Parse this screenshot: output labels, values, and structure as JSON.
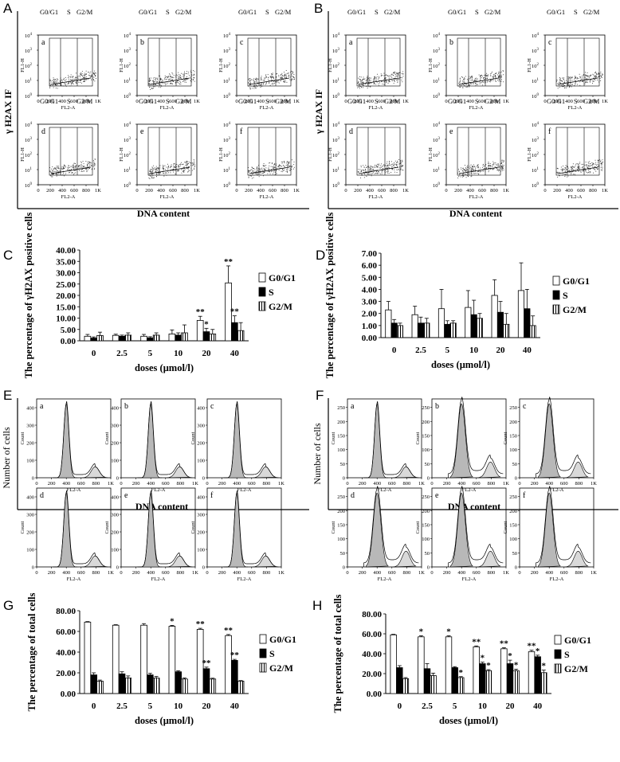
{
  "panel_letters": [
    "A",
    "B",
    "C",
    "D",
    "E",
    "F",
    "G",
    "H"
  ],
  "flow": {
    "gate_labels": [
      "G0/G1",
      "S",
      "G2/M"
    ],
    "x_ticks": [
      "0",
      "200",
      "400",
      "600",
      "800",
      "1K"
    ],
    "y_ticks": [
      "10^0",
      "10^1",
      "10^2",
      "10^3",
      "10^4"
    ],
    "x_axis": "FL2-A",
    "y_axis_small": "FL1-H",
    "y_axis_title": "γ H2AX  IF",
    "x_axis_title": "DNA content",
    "sub_labels": [
      "a",
      "b",
      "c",
      "d",
      "e",
      "f"
    ]
  },
  "hist": {
    "x_ticks": [
      "0",
      "200",
      "400",
      "600",
      "800",
      "1K"
    ],
    "y_ticks_E": [
      "0",
      "100",
      "200",
      "300",
      "400"
    ],
    "y_ticks_F": [
      "0",
      "50",
      "100",
      "150",
      "200",
      "250"
    ],
    "x_axis": "FL2-A",
    "y_axis_small": "Count",
    "y_axis_title": "Number of cells",
    "x_axis_title": "DNA content",
    "sub_labels": [
      "a",
      "b",
      "c",
      "d",
      "e",
      "f"
    ]
  },
  "colors": {
    "ink": "#000000",
    "gray_fill": "#b8b8b8",
    "light_fill": "#d9d9d9"
  },
  "chart_data": [
    {
      "id": "C",
      "type": "bar",
      "ylabel": "The percentage of γH2AX positive cells",
      "xlabel": "doses (μmol/l)",
      "categories": [
        "0",
        "2.5",
        "5",
        "10",
        "20",
        "40"
      ],
      "ylim": [
        0,
        40
      ],
      "yticks": [
        "0.00",
        "5.00",
        "10.00",
        "15.00",
        "20.00",
        "25.00",
        "30.00",
        "35.00",
        "40.00"
      ],
      "legend": [
        "G0/G1",
        "S",
        "G2/M"
      ],
      "series": [
        {
          "name": "G0/G1",
          "values": [
            2.0,
            2.4,
            2.0,
            3.0,
            9.0,
            25.5
          ],
          "errors": [
            0.8,
            0.5,
            0.8,
            1.8,
            1.8,
            7.5
          ]
        },
        {
          "name": "S",
          "values": [
            1.2,
            2.0,
            1.3,
            2.5,
            4.0,
            8.0
          ],
          "errors": [
            0.5,
            0.5,
            0.5,
            1.0,
            1.5,
            3.0
          ]
        },
        {
          "name": "G2/M",
          "values": [
            2.3,
            2.5,
            2.5,
            3.5,
            3.0,
            4.5
          ],
          "errors": [
            1.5,
            1.0,
            1.0,
            3.5,
            2.0,
            3.5
          ]
        }
      ],
      "annotations": [
        {
          "cat": "20",
          "series": "G0/G1",
          "text": "**"
        },
        {
          "cat": "20",
          "series": "S",
          "text": "*"
        },
        {
          "cat": "40",
          "series": "G0/G1",
          "text": "**"
        },
        {
          "cat": "40",
          "series": "S",
          "text": "**"
        }
      ]
    },
    {
      "id": "D",
      "type": "bar",
      "ylabel": "The percentage of γH2AX positive cells",
      "xlabel": "doses (μmol/l)",
      "categories": [
        "0",
        "2.5",
        "5",
        "10",
        "20",
        "40"
      ],
      "ylim": [
        0,
        7
      ],
      "yticks": [
        "0.00",
        "1.00",
        "2.00",
        "3.00",
        "4.00",
        "5.00",
        "6.00",
        "7.00"
      ],
      "legend": [
        "G0/G1",
        "S",
        "G2/M"
      ],
      "series": [
        {
          "name": "G0/G1",
          "values": [
            2.3,
            1.9,
            2.4,
            2.5,
            3.5,
            3.9
          ],
          "errors": [
            0.7,
            0.7,
            1.6,
            1.4,
            1.3,
            2.3
          ]
        },
        {
          "name": "S",
          "values": [
            1.2,
            1.2,
            1.1,
            1.9,
            2.1,
            2.4
          ],
          "errors": [
            0.3,
            0.5,
            0.3,
            1.2,
            0.9,
            1.6
          ]
        },
        {
          "name": "G2/M",
          "values": [
            1.0,
            1.2,
            1.2,
            1.6,
            1.1,
            1.0
          ],
          "errors": [
            0.2,
            0.4,
            0.2,
            0.4,
            0.9,
            0.8
          ]
        }
      ],
      "annotations": []
    },
    {
      "id": "G",
      "type": "bar",
      "ylabel": "The percentage of total cells",
      "xlabel": "doses (μmol/l)",
      "categories": [
        "0",
        "2.5",
        "5",
        "10",
        "20",
        "40"
      ],
      "ylim": [
        0,
        80
      ],
      "yticks": [
        "0.00",
        "20.00",
        "40.00",
        "60.00",
        "80.00"
      ],
      "legend": [
        "G0/G1",
        "S",
        "G2/M"
      ],
      "series": [
        {
          "name": "G0/G1",
          "values": [
            69,
            66,
            66,
            65,
            62,
            56
          ],
          "errors": [
            0.5,
            0.5,
            1.5,
            0.8,
            1.0,
            1.0
          ]
        },
        {
          "name": "S",
          "values": [
            18,
            19,
            18,
            21,
            24,
            32
          ],
          "errors": [
            2.0,
            2.0,
            1.5,
            1.0,
            1.5,
            1.0
          ]
        },
        {
          "name": "G2/M",
          "values": [
            12,
            15,
            15,
            14,
            14,
            12
          ],
          "errors": [
            1.0,
            2.0,
            1.5,
            1.0,
            0.8,
            0.5
          ]
        }
      ],
      "annotations": [
        {
          "cat": "10",
          "series": "G0/G1",
          "text": "*"
        },
        {
          "cat": "20",
          "series": "G0/G1",
          "text": "**"
        },
        {
          "cat": "20",
          "series": "S",
          "text": "**"
        },
        {
          "cat": "40",
          "series": "G0/G1",
          "text": "**"
        },
        {
          "cat": "40",
          "series": "S",
          "text": "**"
        }
      ]
    },
    {
      "id": "H",
      "type": "bar",
      "ylabel": "The percentage of total cells",
      "xlabel": "doses (μmol/l)",
      "categories": [
        "0",
        "2.5",
        "5",
        "10",
        "20",
        "40"
      ],
      "ylim": [
        0,
        80
      ],
      "yticks": [
        "0.00",
        "20.00",
        "40.00",
        "60.00",
        "80.00"
      ],
      "legend": [
        "G0/G1",
        "S",
        "G2/M"
      ],
      "series": [
        {
          "name": "G0/G1",
          "values": [
            59,
            57,
            57,
            47,
            45,
            42
          ],
          "errors": [
            0.5,
            1.0,
            1.0,
            0.8,
            1.0,
            1.5
          ]
        },
        {
          "name": "S",
          "values": [
            26,
            25,
            26,
            30,
            30,
            37
          ],
          "errors": [
            2.0,
            5.0,
            1.0,
            1.5,
            3.5,
            1.5
          ]
        },
        {
          "name": "G2/M",
          "values": [
            15,
            18,
            16,
            23,
            23,
            21
          ],
          "errors": [
            1.0,
            2.5,
            1.0,
            1.0,
            1.5,
            2.5
          ]
        }
      ],
      "annotations": [
        {
          "cat": "2.5",
          "series": "G0/G1",
          "text": "*"
        },
        {
          "cat": "5",
          "series": "G0/G1",
          "text": "*"
        },
        {
          "cat": "5",
          "series": "G2/M",
          "text": "*"
        },
        {
          "cat": "10",
          "series": "G0/G1",
          "text": "**"
        },
        {
          "cat": "10",
          "series": "S",
          "text": "*"
        },
        {
          "cat": "10",
          "series": "G2/M",
          "text": "*"
        },
        {
          "cat": "20",
          "series": "G0/G1",
          "text": "**"
        },
        {
          "cat": "20",
          "series": "S",
          "text": "*"
        },
        {
          "cat": "20",
          "series": "G2/M",
          "text": "*"
        },
        {
          "cat": "40",
          "series": "G0/G1",
          "text": "**"
        },
        {
          "cat": "40",
          "series": "S",
          "text": "*"
        },
        {
          "cat": "40",
          "series": "G2/M",
          "text": "*"
        }
      ]
    }
  ]
}
